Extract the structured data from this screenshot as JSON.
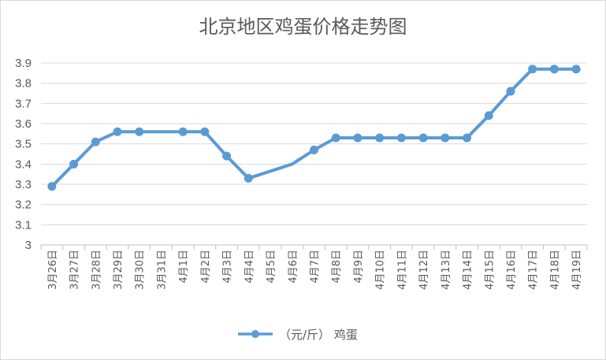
{
  "chart_data": {
    "type": "line",
    "title": "北京地区鸡蛋价格走势图",
    "categories": [
      "3月26日",
      "3月27日",
      "3月28日",
      "3月29日",
      "3月30日",
      "3月31日",
      "4月1日",
      "4月2日",
      "4月3日",
      "4月4日",
      "4月5日",
      "4月6日",
      "4月7日",
      "4月8日",
      "4月9日",
      "4月10日",
      "4月11日",
      "4月12日",
      "4月13日",
      "4月14日",
      "4月15日",
      "4月16日",
      "4月17日",
      "4月18日",
      "4月19日"
    ],
    "series": [
      {
        "name": "（元/斤） 鸡蛋",
        "values": [
          3.29,
          3.4,
          3.51,
          3.56,
          3.56,
          null,
          3.56,
          3.56,
          3.44,
          3.33,
          null,
          3.4,
          3.47,
          3.53,
          3.53,
          3.53,
          3.53,
          3.53,
          3.53,
          3.53,
          3.64,
          3.76,
          3.87,
          3.87,
          3.87
        ]
      }
    ],
    "ylim": [
      3,
      3.9
    ],
    "yticks": [
      "3",
      "3.1",
      "3.2",
      "3.3",
      "3.4",
      "3.5",
      "3.6",
      "3.7",
      "3.8",
      "3.9"
    ],
    "grid": true,
    "legend_position": "bottom",
    "line_color": "#5b9bd5"
  }
}
